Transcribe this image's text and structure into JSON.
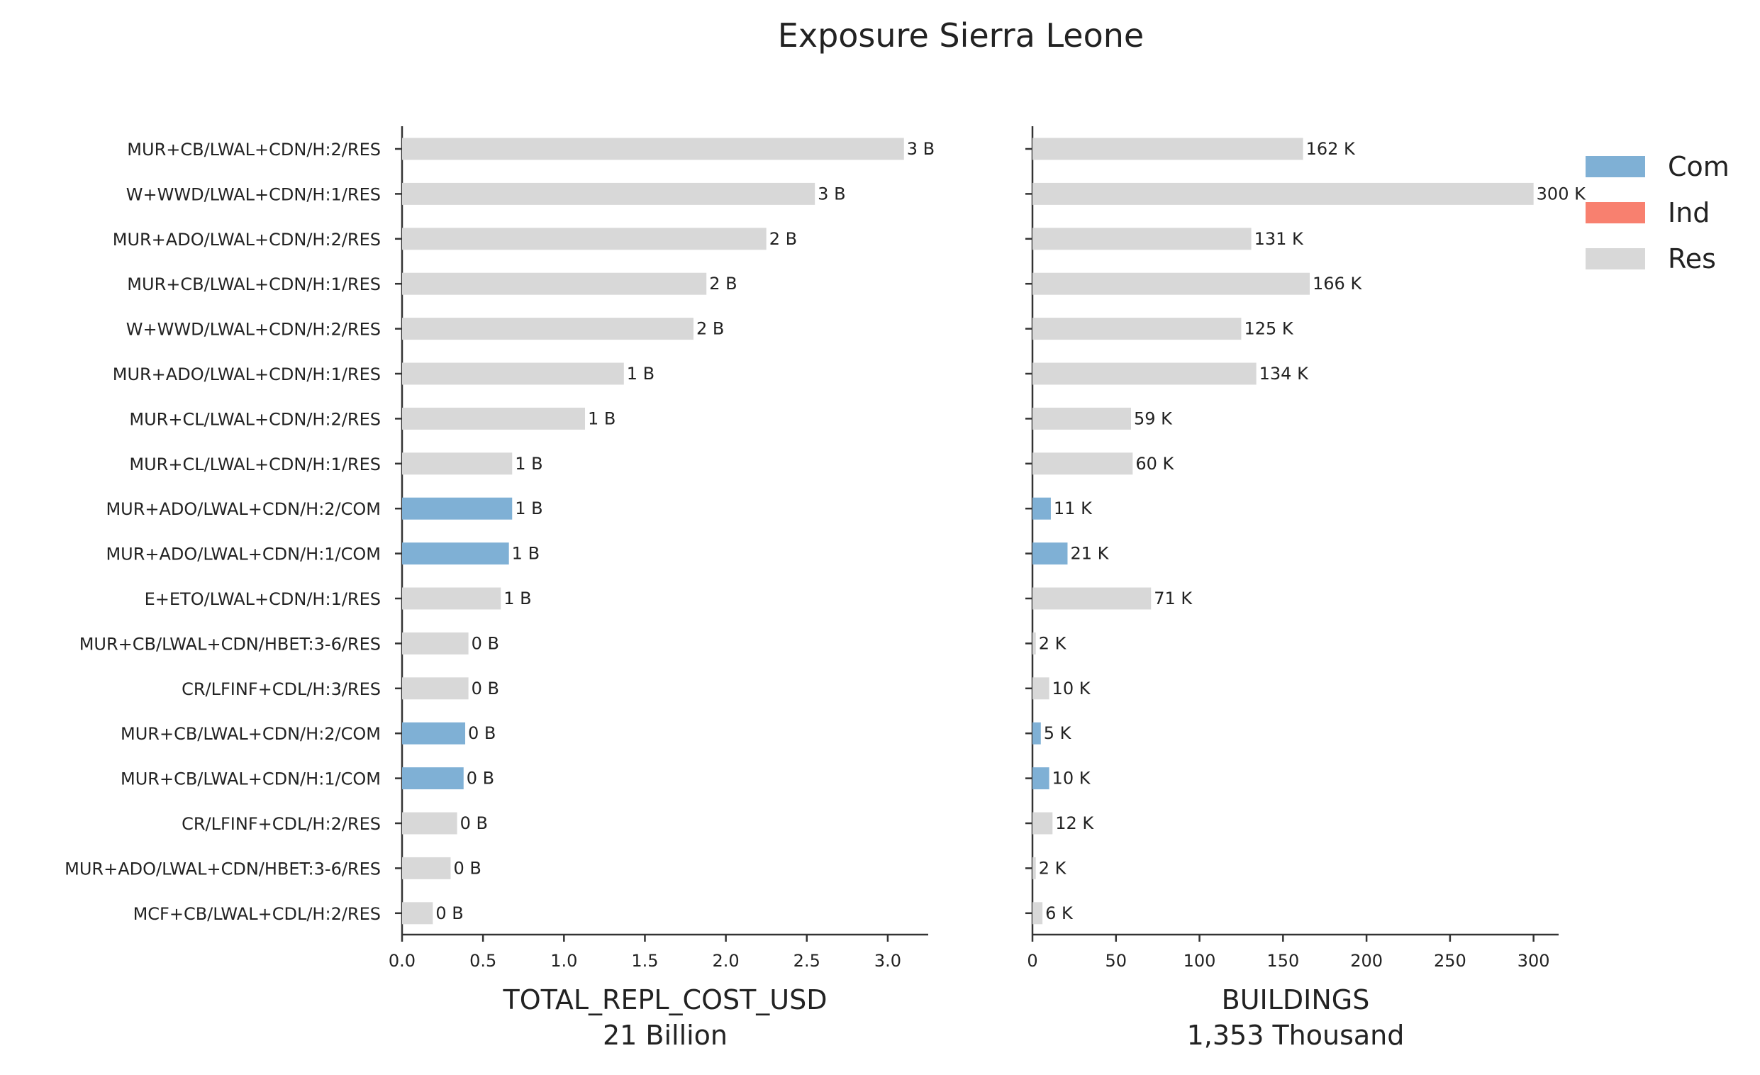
{
  "chart_data": {
    "type": "bar",
    "orientation": "horizontal",
    "title": "Exposure Sierra Leone",
    "categories": [
      "MUR+CB/LWAL+CDN/H:2/RES",
      "W+WWD/LWAL+CDN/H:1/RES",
      "MUR+ADO/LWAL+CDN/H:2/RES",
      "MUR+CB/LWAL+CDN/H:1/RES",
      "W+WWD/LWAL+CDN/H:2/RES",
      "MUR+ADO/LWAL+CDN/H:1/RES",
      "MUR+CL/LWAL+CDN/H:2/RES",
      "MUR+CL/LWAL+CDN/H:1/RES",
      "MUR+ADO/LWAL+CDN/H:2/COM",
      "MUR+ADO/LWAL+CDN/H:1/COM",
      "E+ETO/LWAL+CDN/H:1/RES",
      "MUR+CB/LWAL+CDN/HBET:3-6/RES",
      "CR/LFINF+CDL/H:3/RES",
      "MUR+CB/LWAL+CDN/H:2/COM",
      "MUR+CB/LWAL+CDN/H:1/COM",
      "CR/LFINF+CDL/H:2/RES",
      "MUR+ADO/LWAL+CDN/HBET:3-6/RES",
      "MCF+CB/LWAL+CDL/H:2/RES"
    ],
    "occupancy": [
      "Res",
      "Res",
      "Res",
      "Res",
      "Res",
      "Res",
      "Res",
      "Res",
      "Com",
      "Com",
      "Res",
      "Res",
      "Res",
      "Com",
      "Com",
      "Res",
      "Res",
      "Res"
    ],
    "panels": [
      {
        "xlabel": "TOTAL_REPL_COST_USD",
        "subtitle": "21 Billion",
        "xlim": [
          0,
          3.25
        ],
        "ticks": [
          "0.0",
          "0.5",
          "1.0",
          "1.5",
          "2.0",
          "2.5",
          "3.0"
        ],
        "tick_values": [
          0,
          0.5,
          1.0,
          1.5,
          2.0,
          2.5,
          3.0
        ],
        "values": [
          3.1,
          2.55,
          2.25,
          1.88,
          1.8,
          1.37,
          1.13,
          0.68,
          0.68,
          0.66,
          0.61,
          0.41,
          0.41,
          0.39,
          0.38,
          0.34,
          0.3,
          0.19
        ],
        "value_labels": [
          "3 B",
          "3 B",
          "2 B",
          "2 B",
          "2 B",
          "1 B",
          "1 B",
          "1 B",
          "1 B",
          "1 B",
          "1 B",
          "0 B",
          "0 B",
          "0 B",
          "0 B",
          "0 B",
          "0 B",
          "0 B"
        ]
      },
      {
        "xlabel": "BUILDINGS",
        "subtitle": "1,353 Thousand",
        "xlim": [
          0,
          315
        ],
        "ticks": [
          "0",
          "50",
          "100",
          "150",
          "200",
          "250",
          "300"
        ],
        "tick_values": [
          0,
          50,
          100,
          150,
          200,
          250,
          300
        ],
        "values": [
          162,
          300,
          131,
          166,
          125,
          134,
          59,
          60,
          11,
          21,
          71,
          2,
          10,
          5,
          10,
          12,
          2,
          6
        ],
        "value_labels": [
          "162 K",
          "300 K",
          "131 K",
          "166 K",
          "125 K",
          "134 K",
          "59 K",
          "60 K",
          "11 K",
          "21 K",
          "71 K",
          "2 K",
          "10 K",
          "5 K",
          "10 K",
          "12 K",
          "2 K",
          "6 K"
        ]
      }
    ],
    "legend": {
      "position": "top-right",
      "items": [
        {
          "label": "Com",
          "color": "#7fb0d5"
        },
        {
          "label": "Ind",
          "color": "#f8806f"
        },
        {
          "label": "Res",
          "color": "#d8d8d8"
        }
      ]
    },
    "grid": false
  }
}
